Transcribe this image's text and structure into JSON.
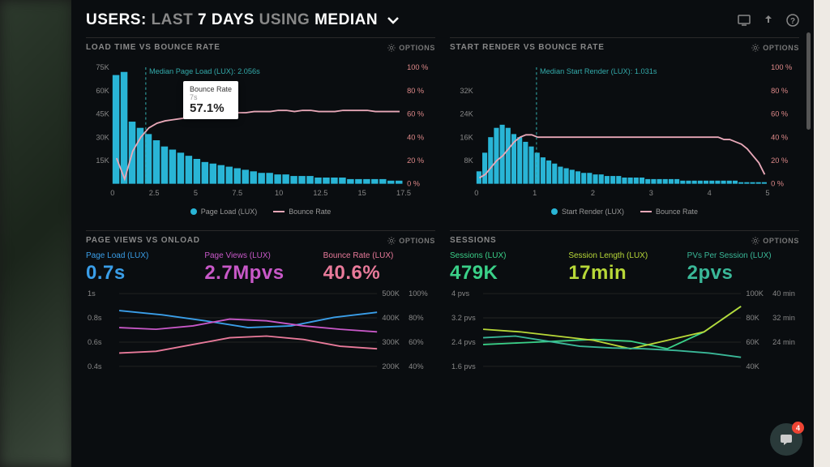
{
  "colors": {
    "bg": "#0a0d10",
    "bar": "#29b5d6",
    "bounce_line": "#e8a8b8",
    "text_muted": "#888888",
    "blue": "#3a9ee8",
    "magenta": "#c858c8",
    "pink": "#e87a9a",
    "green": "#3ad088",
    "lime": "#b8d838",
    "teal": "#3ab898"
  },
  "header": {
    "prefix": "USERS:",
    "last": "LAST",
    "days": "7 DAYS",
    "using": "USING",
    "median": "MEDIAN"
  },
  "panel1": {
    "title": "LOAD TIME VS BOUNCE RATE",
    "options": "OPTIONS",
    "median_label": "Median Page Load (LUX): 2.056s",
    "median_x": 2.056,
    "tooltip_label": "Bounce Rate",
    "tooltip_sub": "7s",
    "tooltip_value": "57.1%",
    "legend1": "Page Load (LUX)",
    "legend2": "Bounce Rate",
    "yleft_ticks": [
      "75K",
      "60K",
      "45K",
      "30K",
      "15K",
      ""
    ],
    "yright_ticks": [
      "100 %",
      "80 %",
      "60 %",
      "40 %",
      "20 %",
      "0 %"
    ],
    "x_ticks": [
      "0",
      "2.5",
      "5",
      "7.5",
      "10",
      "12.5",
      "15",
      "17.5"
    ],
    "bars": [
      70,
      72,
      40,
      36,
      32,
      28,
      24,
      22,
      20,
      18,
      16,
      14,
      13,
      12,
      11,
      10,
      9,
      8,
      7,
      7,
      6,
      6,
      5,
      5,
      5,
      4,
      4,
      4,
      4,
      3,
      3,
      3,
      3,
      3,
      2,
      2
    ],
    "bounce": [
      22,
      4,
      28,
      40,
      48,
      52,
      54,
      55,
      56,
      57,
      58,
      59,
      60,
      60,
      60,
      61,
      61,
      62,
      62,
      62,
      63,
      63,
      62,
      63,
      63,
      62,
      62,
      62,
      63,
      63,
      63,
      63,
      62,
      62,
      62,
      62
    ]
  },
  "panel2": {
    "title": "START RENDER VS BOUNCE RATE",
    "options": "OPTIONS",
    "median_label": "Median Start Render (LUX): 1.031s",
    "median_x": 1.031,
    "legend1": "Start Render (LUX)",
    "legend2": "Bounce Rate",
    "yleft_ticks": [
      "",
      "32K",
      "24K",
      "16K",
      "8K",
      ""
    ],
    "yright_ticks": [
      "100 %",
      "80 %",
      "60 %",
      "40 %",
      "20 %",
      "0 %"
    ],
    "x_ticks": [
      "0",
      "1",
      "2",
      "3",
      "4",
      "5"
    ],
    "bars": [
      8,
      20,
      30,
      36,
      38,
      36,
      32,
      30,
      27,
      24,
      20,
      17,
      15,
      13,
      11,
      10,
      9,
      8,
      7,
      7,
      6,
      6,
      5,
      5,
      5,
      4,
      4,
      4,
      4,
      3,
      3,
      3,
      3,
      3,
      3,
      2,
      2,
      2,
      2,
      2,
      2,
      2,
      2,
      2,
      2,
      1,
      1,
      1,
      1,
      1
    ],
    "bounce": [
      5,
      8,
      14,
      20,
      24,
      30,
      36,
      40,
      42,
      42,
      40,
      40,
      40,
      40,
      40,
      40,
      40,
      40,
      40,
      40,
      40,
      40,
      40,
      40,
      40,
      40,
      40,
      40,
      40,
      40,
      40,
      40,
      40,
      40,
      40,
      40,
      40,
      40,
      40,
      40,
      40,
      40,
      38,
      38,
      36,
      34,
      30,
      24,
      18,
      8
    ]
  },
  "panel3": {
    "title": "PAGE VIEWS VS ONLOAD",
    "options": "OPTIONS",
    "stats": [
      {
        "label": "Page Load (LUX)",
        "value": "0.7s",
        "color": "#3a9ee8"
      },
      {
        "label": "Page Views (LUX)",
        "value": "2.7Mpvs",
        "color": "#c858c8"
      },
      {
        "label": "Bounce Rate (LUX)",
        "value": "40.6%",
        "color": "#e87a9a"
      }
    ],
    "yleft_ticks": [
      "1s",
      "0.8s",
      "0.6s",
      "0.4s"
    ],
    "yright1_ticks": [
      "500K",
      "400K",
      "300K",
      "200K"
    ],
    "yright2_ticks": [
      "100%",
      "80%",
      "60%",
      "40%"
    ],
    "blue_line": [
      80,
      75,
      68,
      60,
      62,
      72,
      78
    ],
    "purple_line": [
      60,
      58,
      62,
      70,
      68,
      62,
      58,
      55
    ],
    "pink_line": [
      30,
      32,
      40,
      48,
      50,
      46,
      38,
      35
    ]
  },
  "panel4": {
    "title": "SESSIONS",
    "options": "OPTIONS",
    "stats": [
      {
        "label": "Sessions (LUX)",
        "value": "479K",
        "color": "#3ad088"
      },
      {
        "label": "Session Length (LUX)",
        "value": "17min",
        "color": "#b8d838"
      },
      {
        "label": "PVs Per Session (LUX)",
        "value": "2pvs",
        "color": "#3ab898"
      }
    ],
    "yleft_ticks": [
      "4 pvs",
      "3.2 pvs",
      "2.4 pvs",
      "1.6 pvs"
    ],
    "yright1_ticks": [
      "100K",
      "80K",
      "60K",
      "40K"
    ],
    "yright2_ticks": [
      "40 min",
      "32 min",
      "24 min",
      ""
    ],
    "green_line": [
      40,
      42,
      44,
      46,
      44,
      35,
      55,
      85
    ],
    "lime_line": [
      58,
      55,
      50,
      45,
      35,
      45,
      55,
      85
    ],
    "teal_line": [
      48,
      50,
      44,
      38,
      36,
      35,
      33,
      30,
      25
    ]
  },
  "chat_badge": "4"
}
